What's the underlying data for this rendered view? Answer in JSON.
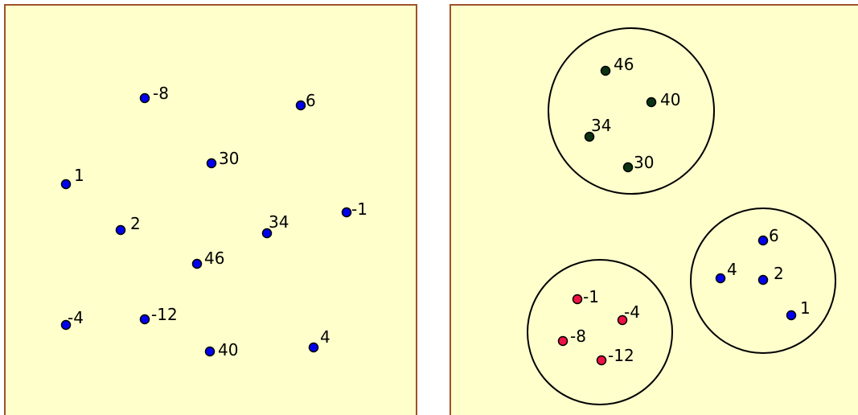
{
  "colors": {
    "panel_fill": "#ffffcc",
    "panel_border": "#a0522d",
    "unclustered_point": "#0000ee",
    "cluster_a_point": "#0b3311",
    "cluster_b_point": "#ee1144",
    "cluster_c_point": "#0000ee"
  },
  "left_panel": {
    "points": [
      {
        "label": "-8"
      },
      {
        "label": "6"
      },
      {
        "label": "30"
      },
      {
        "label": "1"
      },
      {
        "label": "-1"
      },
      {
        "label": "2"
      },
      {
        "label": "34"
      },
      {
        "label": "46"
      },
      {
        "label": "-4"
      },
      {
        "label": "-12"
      },
      {
        "label": "4"
      },
      {
        "label": "40"
      }
    ]
  },
  "right_panel": {
    "clusters": [
      {
        "color_key": "cluster_a_point",
        "points": [
          {
            "label": "46"
          },
          {
            "label": "40"
          },
          {
            "label": "34"
          },
          {
            "label": "30"
          }
        ]
      },
      {
        "color_key": "cluster_c_point",
        "points": [
          {
            "label": "6"
          },
          {
            "label": "4"
          },
          {
            "label": "2"
          },
          {
            "label": "1"
          }
        ]
      },
      {
        "color_key": "cluster_b_point",
        "points": [
          {
            "label": "-1"
          },
          {
            "label": "-4"
          },
          {
            "label": "-8"
          },
          {
            "label": "-12"
          }
        ]
      }
    ]
  }
}
